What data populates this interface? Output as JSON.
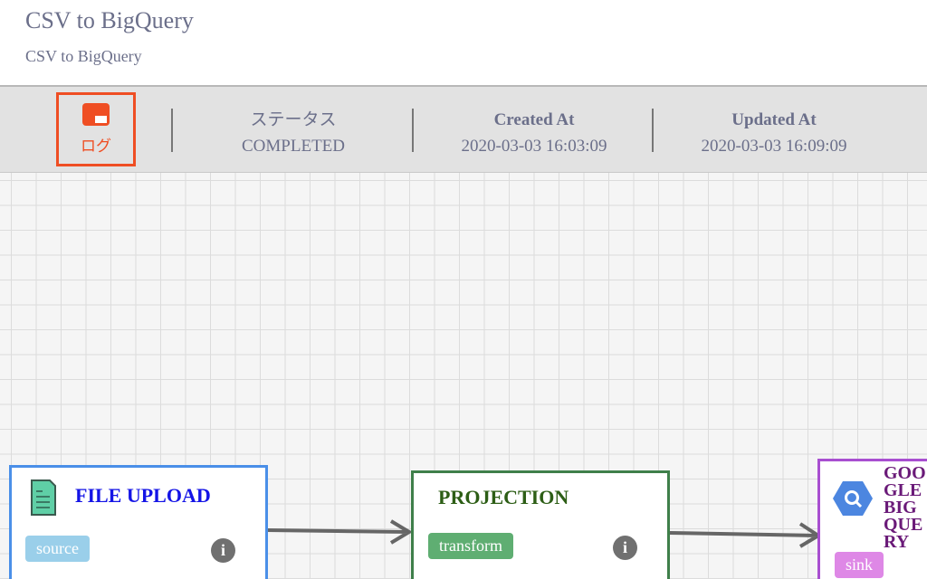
{
  "header": {
    "title": "CSV to BigQuery",
    "subtitle": "CSV to BigQuery"
  },
  "toolbar": {
    "log_label": "ログ",
    "status_label": "ステータス",
    "status_value": "COMPLETED",
    "created_label": "Created At",
    "created_value": "2020-03-03 16:03:09",
    "updated_label": "Updated At",
    "updated_value": "2020-03-03 16:09:09",
    "accent": "#ef4e23"
  },
  "nodes": [
    {
      "title": "FILE UPLOAD",
      "tag": "source",
      "icon": "file-icon",
      "border": "#4a8fe8",
      "title_color": "#1414e6",
      "tag_color": "#9acfea"
    },
    {
      "title": "PROJECTION",
      "tag": "transform",
      "border": "#3f7f4a",
      "title_color": "#2d5e16",
      "tag_color": "#5fae72"
    },
    {
      "title": "GOOGLE BIGQUERY",
      "tag": "sink",
      "icon": "bigquery-icon",
      "border": "#a84fd0",
      "title_color": "#6a1a78",
      "tag_color": "#de88e6"
    }
  ],
  "info_label": "i"
}
